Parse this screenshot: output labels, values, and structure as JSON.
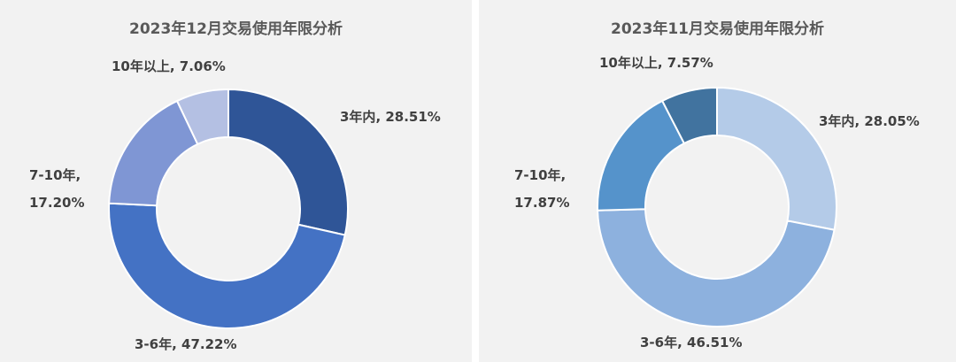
{
  "chart_data": [
    {
      "type": "pie",
      "title": "2023年12月交易使用年限分析",
      "slices": [
        {
          "label": "3年内",
          "value_text": "28.51%",
          "value": 28.51,
          "color": "#2f5597"
        },
        {
          "label": "3-6年",
          "value_text": "47.22%",
          "value": 47.22,
          "color": "#4472c4"
        },
        {
          "label": "7-10年",
          "value_text": "17.20%",
          "value": 17.2,
          "color": "#7f96d4"
        },
        {
          "label": "10年以上",
          "value_text": "7.06%",
          "value": 7.06,
          "color": "#b4c0e3"
        }
      ]
    },
    {
      "type": "pie",
      "title": "2023年11月交易使用年限分析",
      "slices": [
        {
          "label": "3年内",
          "value_text": "28.05%",
          "value": 28.05,
          "color": "#b4cbe8"
        },
        {
          "label": "3-6年",
          "value_text": "46.51%",
          "value": 46.51,
          "color": "#8db1de"
        },
        {
          "label": "7-10年",
          "value_text": "17.87%",
          "value": 17.87,
          "color": "#5593cb"
        },
        {
          "label": "10年以上",
          "value_text": "7.57%",
          "value": 7.57,
          "color": "#41739f"
        }
      ]
    }
  ]
}
